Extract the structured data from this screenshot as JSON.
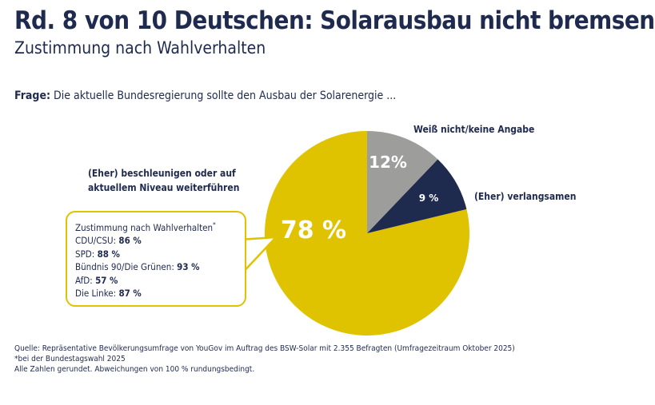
{
  "title": "Rd. 8 von 10 Deutschen: Solarausbau nicht bremsen",
  "subtitle": "Zustimmung nach Wahlverhalten",
  "question": {
    "label": "Frage:",
    "text": "Die aktuelle Bundesregierung sollte den Ausbau der Solarenergie ..."
  },
  "chart_data": {
    "type": "pie",
    "slices": [
      {
        "label": "Weiß nicht/keine Angabe",
        "value": 12,
        "value_label": "12%",
        "color": "#9d9d9c"
      },
      {
        "label": "(Eher) verlangsamen",
        "value": 9,
        "value_label": "9 %",
        "color": "#1f2a4f"
      },
      {
        "label": "(Eher) beschleunigen oder auf aktuellem Niveau weiterführen",
        "value": 78,
        "value_label": "78 %",
        "color": "#dfc200"
      }
    ],
    "start": "12 o'clock",
    "direction": "clockwise"
  },
  "callout": {
    "heading": "Zustimmung nach Wahlverhalten",
    "marker": "*",
    "rows": [
      {
        "party": "CDU/CSU:",
        "value": "86 %"
      },
      {
        "party": "SPD:",
        "value": "88 %"
      },
      {
        "party": "Bündnis 90/Die Grünen:",
        "value": "93 %"
      },
      {
        "party": "AfD:",
        "value": "57 %"
      },
      {
        "party": "Die Linke:",
        "value": "87 %"
      }
    ]
  },
  "footer": [
    "Quelle: Repräsentative Bevölkerungsumfrage von YouGov im Auftrag des BSW-Solar mit 2.355 Befragten (Umfragezeitraum Oktober 2025)",
    "*bei der Bundestagswahl 2025",
    "Alle Zahlen gerundet. Abweichungen von 100 % rundungsbedingt."
  ]
}
